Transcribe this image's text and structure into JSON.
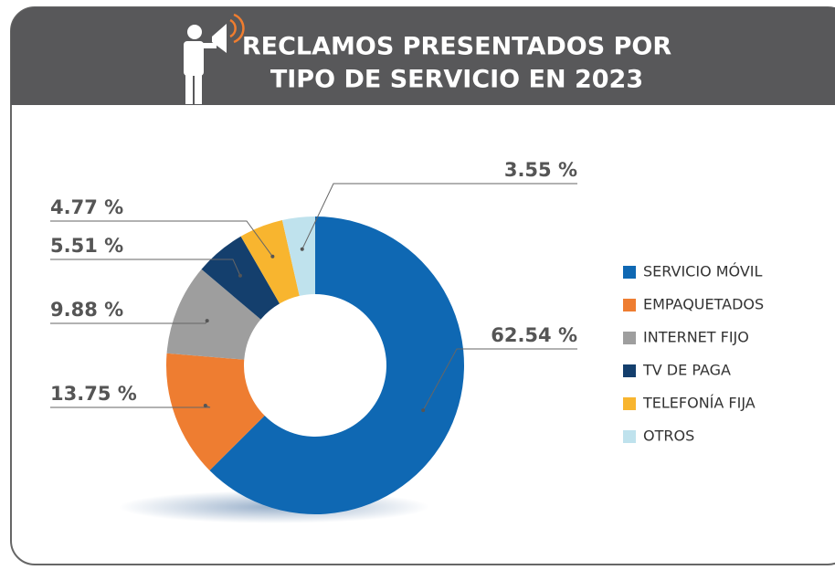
{
  "chart_data": {
    "type": "donut",
    "title": [
      "RECLAMOS PRESENTADOS POR",
      "TIPO DE SERVICIO EN 2023"
    ],
    "categories": [
      "SERVICIO MÓVIL",
      "EMPAQUETADOS",
      "INTERNET FIJO",
      "TV DE PAGA",
      "TELEFONÍA FIJA",
      "OTROS"
    ],
    "values": [
      62.54,
      13.75,
      9.88,
      5.51,
      4.77,
      3.55
    ],
    "value_labels": [
      "62.54 %",
      "13.75 %",
      "9.88 %",
      "5.51 %",
      "4.77 %",
      "3.55 %"
    ],
    "colors": [
      "#0f68b3",
      "#ee7d31",
      "#9e9e9e",
      "#143f6d",
      "#f8b52f",
      "#bfe2ed"
    ],
    "legend": "right"
  }
}
